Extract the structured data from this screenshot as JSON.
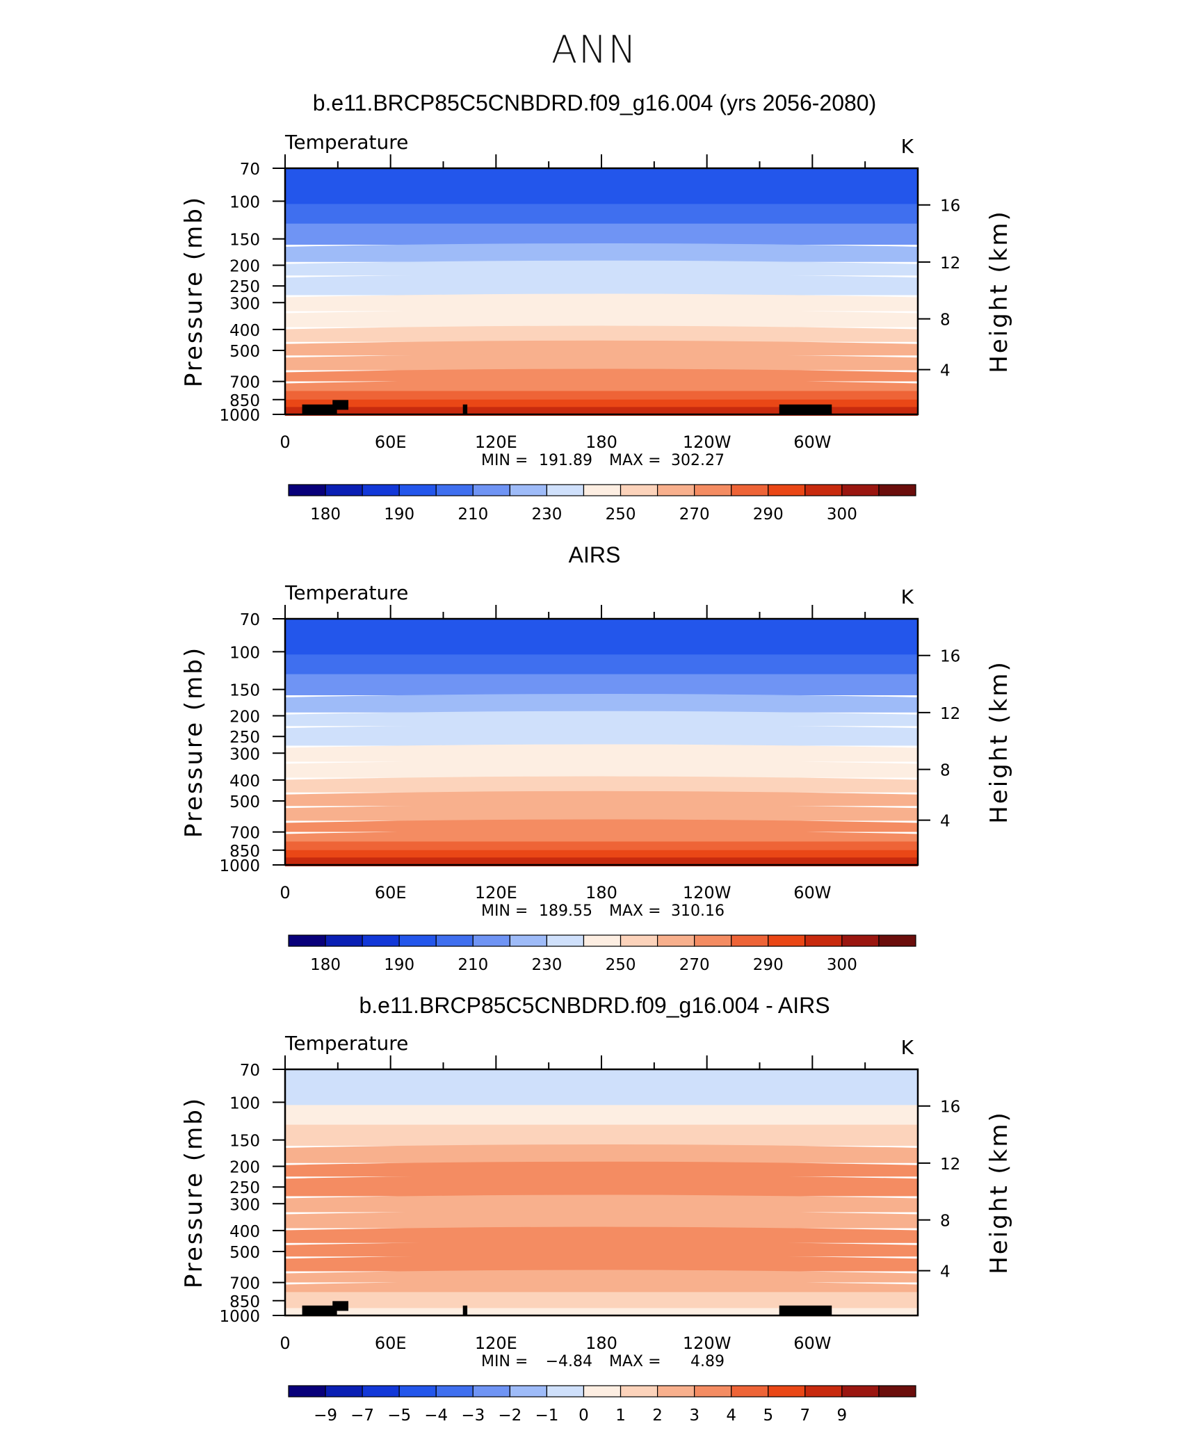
{
  "page_title": "ANN",
  "chart_data": [
    {
      "type": "heatmap",
      "title": "b.e11.BRCP85C5CNBDRD.f09_g16.004 (yrs 2056-2080)",
      "variable": "Temperature",
      "units": "K",
      "ylabel": "Pressure (mb)",
      "y2label": "Height (km)",
      "y_ticks": [
        "70",
        "100",
        "150",
        "200",
        "250",
        "300",
        "400",
        "500",
        "700",
        "850",
        "1000"
      ],
      "y2_ticks": [
        "16",
        "12",
        "8",
        "4"
      ],
      "x_ticks": [
        "0",
        "60E",
        "120E",
        "180",
        "120W",
        "60W"
      ],
      "min_label": "MIN =",
      "min_value": "191.89",
      "max_label": "MAX =",
      "max_value": "302.27",
      "colorbar_labels": [
        "180",
        "190",
        "210",
        "230",
        "250",
        "270",
        "290",
        "300"
      ],
      "band_levels": [
        205,
        213,
        222,
        232,
        240,
        246,
        251,
        258,
        265,
        270,
        276,
        282,
        288,
        292,
        296,
        300
      ],
      "mountains": true
    },
    {
      "type": "heatmap",
      "title": "AIRS",
      "variable": "Temperature",
      "units": "K",
      "ylabel": "Pressure (mb)",
      "y2label": "Height (km)",
      "y_ticks": [
        "70",
        "100",
        "150",
        "200",
        "250",
        "300",
        "400",
        "500",
        "700",
        "850",
        "1000"
      ],
      "y2_ticks": [
        "16",
        "12",
        "8",
        "4"
      ],
      "x_ticks": [
        "0",
        "60E",
        "120E",
        "180",
        "120W",
        "60W"
      ],
      "min_label": "MIN =",
      "min_value": "189.55",
      "max_label": "MAX =",
      "max_value": "310.16",
      "colorbar_labels": [
        "180",
        "190",
        "210",
        "230",
        "250",
        "270",
        "290",
        "300"
      ],
      "band_levels": [
        205,
        213,
        222,
        232,
        240,
        246,
        251,
        258,
        265,
        270,
        276,
        282,
        288,
        292,
        296,
        300
      ],
      "mountains": false
    },
    {
      "type": "heatmap",
      "title": "b.e11.BRCP85C5CNBDRD.f09_g16.004 - AIRS",
      "variable": "Temperature",
      "units": "K",
      "ylabel": "Pressure (mb)",
      "y2label": "Height (km)",
      "y_ticks": [
        "70",
        "100",
        "150",
        "200",
        "250",
        "300",
        "400",
        "500",
        "700",
        "850",
        "1000"
      ],
      "y2_ticks": [
        "16",
        "12",
        "8",
        "4"
      ],
      "x_ticks": [
        "0",
        "60E",
        "120E",
        "180",
        "120W",
        "60W"
      ],
      "min_label": "MIN =",
      "min_value": "−4.84",
      "max_label": "MAX =",
      "max_value": "4.89",
      "colorbar_labels": [
        "−9",
        "−7",
        "−5",
        "−4",
        "−3",
        "−2",
        "−1",
        "0",
        "1",
        "2",
        "3",
        "4",
        "5",
        "7",
        "9"
      ],
      "band_levels": [
        -1,
        0.5,
        1.5,
        2.5,
        3,
        3,
        2.5,
        2.5,
        3.5,
        3.5,
        3,
        2.5,
        2,
        1.5,
        1,
        0.5
      ],
      "mountains": true
    }
  ],
  "colormap": [
    "#08007a",
    "#0a1fb4",
    "#1238d8",
    "#2356eb",
    "#3f6fef",
    "#6f94f4",
    "#9ebbf8",
    "#cfe0fb",
    "#fdeee2",
    "#fcd3bb",
    "#f8b08d",
    "#f48c62",
    "#ee6437",
    "#ea4716",
    "#c82a0e",
    "#9a1610",
    "#6b0e0c"
  ]
}
